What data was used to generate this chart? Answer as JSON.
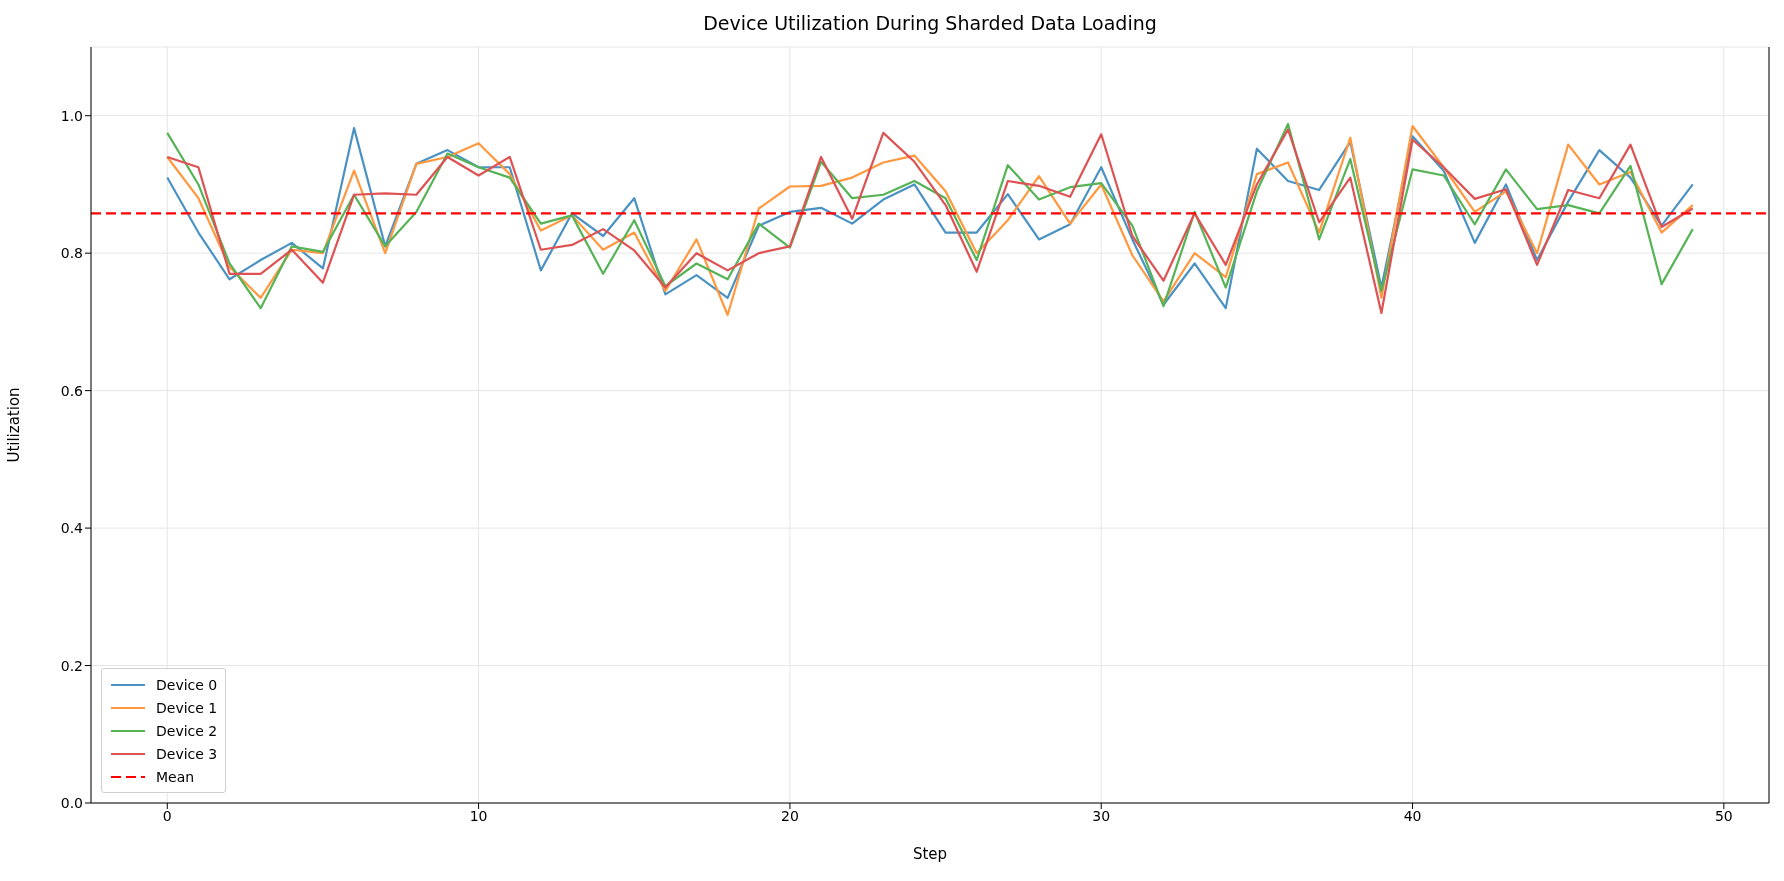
{
  "chart_data": {
    "type": "line",
    "title": "Device Utilization During Sharded Data Loading",
    "xlabel": "Step",
    "ylabel": "Utilization",
    "x": [
      0,
      1,
      2,
      3,
      4,
      5,
      6,
      7,
      8,
      9,
      10,
      11,
      12,
      13,
      14,
      15,
      16,
      17,
      18,
      19,
      20,
      21,
      22,
      23,
      24,
      25,
      26,
      27,
      28,
      29,
      30,
      31,
      32,
      33,
      34,
      35,
      36,
      37,
      38,
      39,
      40,
      41,
      42,
      43,
      44,
      45,
      46,
      47,
      48,
      49
    ],
    "series": [
      {
        "name": "Device 0",
        "color": "#4b92c3",
        "values": [
          0.91,
          0.83,
          0.762,
          0.79,
          0.815,
          0.778,
          0.982,
          0.81,
          0.93,
          0.95,
          0.925,
          0.925,
          0.775,
          0.858,
          0.825,
          0.88,
          0.74,
          0.768,
          0.735,
          0.84,
          0.86,
          0.866,
          0.843,
          0.878,
          0.9,
          0.83,
          0.83,
          0.886,
          0.82,
          0.842,
          0.925,
          0.82,
          0.725,
          0.785,
          0.72,
          0.952,
          0.905,
          0.892,
          0.962,
          0.75,
          0.97,
          0.92,
          0.815,
          0.9,
          0.79,
          0.875,
          0.95,
          0.91,
          0.84,
          0.9
        ]
      },
      {
        "name": "Device 1",
        "color": "#ff983e",
        "values": [
          0.94,
          0.88,
          0.78,
          0.735,
          0.805,
          0.8,
          0.92,
          0.8,
          0.93,
          0.94,
          0.96,
          0.915,
          0.833,
          0.855,
          0.805,
          0.83,
          0.745,
          0.82,
          0.71,
          0.865,
          0.897,
          0.898,
          0.91,
          0.932,
          0.942,
          0.89,
          0.8,
          0.848,
          0.912,
          0.843,
          0.9,
          0.797,
          0.73,
          0.8,
          0.765,
          0.915,
          0.932,
          0.83,
          0.968,
          0.735,
          0.985,
          0.925,
          0.86,
          0.89,
          0.8,
          0.958,
          0.9,
          0.918,
          0.83,
          0.87
        ]
      },
      {
        "name": "Device 2",
        "color": "#56b356",
        "values": [
          0.975,
          0.9,
          0.785,
          0.72,
          0.81,
          0.802,
          0.885,
          0.81,
          0.86,
          0.945,
          0.925,
          0.91,
          0.843,
          0.855,
          0.77,
          0.848,
          0.752,
          0.785,
          0.762,
          0.843,
          0.808,
          0.933,
          0.88,
          0.885,
          0.905,
          0.88,
          0.79,
          0.928,
          0.878,
          0.896,
          0.902,
          0.84,
          0.723,
          0.86,
          0.75,
          0.89,
          0.988,
          0.82,
          0.937,
          0.745,
          0.922,
          0.913,
          0.842,
          0.922,
          0.864,
          0.87,
          0.858,
          0.927,
          0.755,
          0.835
        ]
      },
      {
        "name": "Device 3",
        "color": "#de5253",
        "values": [
          0.94,
          0.925,
          0.77,
          0.77,
          0.805,
          0.757,
          0.885,
          0.887,
          0.885,
          0.94,
          0.913,
          0.94,
          0.805,
          0.812,
          0.835,
          0.804,
          0.75,
          0.8,
          0.775,
          0.8,
          0.81,
          0.94,
          0.85,
          0.975,
          0.933,
          0.87,
          0.773,
          0.905,
          0.898,
          0.882,
          0.973,
          0.825,
          0.76,
          0.858,
          0.783,
          0.9,
          0.98,
          0.845,
          0.91,
          0.713,
          0.965,
          0.925,
          0.879,
          0.893,
          0.783,
          0.892,
          0.88,
          0.958,
          0.838,
          0.865
        ]
      }
    ],
    "ref_lines": [
      {
        "axis": "y",
        "value": 0.858,
        "label": "Mean",
        "color": "#ff0000",
        "line_style": "dashed"
      }
    ],
    "xlim": [
      -2.45,
      51.45
    ],
    "xticks": [
      0,
      10,
      20,
      30,
      40,
      50
    ],
    "ylim": [
      0,
      1.1
    ],
    "yticks": [
      {
        "value": 0,
        "label": "0.0"
      },
      {
        "value": 0.2,
        "label": "0.2"
      },
      {
        "value": 0.4,
        "label": "0.4"
      },
      {
        "value": 0.6,
        "label": "0.6"
      },
      {
        "value": 0.8,
        "label": "0.8"
      },
      {
        "value": 1,
        "label": "1.0"
      }
    ],
    "grid": true,
    "legend": "bottom left",
    "marker": "none",
    "line_style": "solid"
  }
}
